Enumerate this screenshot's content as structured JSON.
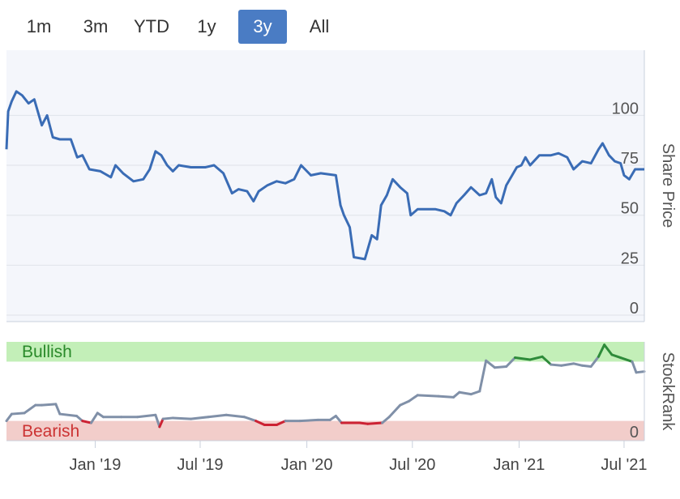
{
  "range_selector": {
    "tabs": [
      {
        "label": "1m",
        "active": false
      },
      {
        "label": "3m",
        "active": false
      },
      {
        "label": "YTD",
        "active": false
      },
      {
        "label": "1y",
        "active": false
      },
      {
        "label": "3y",
        "active": true
      },
      {
        "label": "All",
        "active": false
      }
    ],
    "active_color": "#4a7cc4"
  },
  "chart_data": [
    {
      "type": "line",
      "ylabel": "Share Price",
      "ylim": [
        0,
        118
      ],
      "y_ticks": [
        0,
        25,
        50,
        75,
        100
      ],
      "x_ticks": [
        "Jan '19",
        "Jul '19",
        "Jan '20",
        "Jul '20",
        "Jan '21",
        "Jul '21"
      ],
      "x_tick_dates": [
        "2019-01-01",
        "2019-07-01",
        "2020-01-01",
        "2020-07-01",
        "2021-01-01",
        "2021-07-01"
      ],
      "xlim": [
        "2018-08-01",
        "2021-08-05"
      ],
      "grid": true,
      "series": [
        {
          "color": "#3a6cb5",
          "points": [
            [
              "2018-08-01",
              83
            ],
            [
              "2018-08-04",
              102
            ],
            [
              "2018-08-10",
              107
            ],
            [
              "2018-08-18",
              112
            ],
            [
              "2018-08-28",
              110
            ],
            [
              "2018-09-08",
              106
            ],
            [
              "2018-09-18",
              108
            ],
            [
              "2018-10-01",
              95
            ],
            [
              "2018-10-10",
              100
            ],
            [
              "2018-10-20",
              89
            ],
            [
              "2018-11-01",
              88
            ],
            [
              "2018-11-20",
              88
            ],
            [
              "2018-12-01",
              79
            ],
            [
              "2018-12-10",
              80
            ],
            [
              "2018-12-22",
              73
            ],
            [
              "2019-01-10",
              72
            ],
            [
              "2019-01-28",
              69
            ],
            [
              "2019-02-05",
              75
            ],
            [
              "2019-02-18",
              71
            ],
            [
              "2019-03-08",
              67
            ],
            [
              "2019-03-25",
              68
            ],
            [
              "2019-04-05",
              73
            ],
            [
              "2019-04-15",
              82
            ],
            [
              "2019-04-25",
              80
            ],
            [
              "2019-05-05",
              75
            ],
            [
              "2019-05-15",
              72
            ],
            [
              "2019-05-25",
              75
            ],
            [
              "2019-06-15",
              74
            ],
            [
              "2019-07-10",
              74
            ],
            [
              "2019-07-25",
              75
            ],
            [
              "2019-08-10",
              71
            ],
            [
              "2019-08-25",
              61
            ],
            [
              "2019-09-05",
              63
            ],
            [
              "2019-09-20",
              62
            ],
            [
              "2019-10-01",
              57
            ],
            [
              "2019-10-10",
              62
            ],
            [
              "2019-10-25",
              65
            ],
            [
              "2019-11-10",
              67
            ],
            [
              "2019-11-25",
              66
            ],
            [
              "2019-12-10",
              68
            ],
            [
              "2019-12-22",
              75
            ],
            [
              "2020-01-08",
              70
            ],
            [
              "2020-01-25",
              71
            ],
            [
              "2020-02-20",
              70
            ],
            [
              "2020-02-28",
              55
            ],
            [
              "2020-03-05",
              50
            ],
            [
              "2020-03-15",
              44
            ],
            [
              "2020-03-22",
              29
            ],
            [
              "2020-04-10",
              28
            ],
            [
              "2020-04-22",
              40
            ],
            [
              "2020-05-01",
              38
            ],
            [
              "2020-05-08",
              55
            ],
            [
              "2020-05-18",
              60
            ],
            [
              "2020-05-28",
              68
            ],
            [
              "2020-06-10",
              64
            ],
            [
              "2020-06-22",
              61
            ],
            [
              "2020-06-28",
              50
            ],
            [
              "2020-07-10",
              53
            ],
            [
              "2020-08-10",
              53
            ],
            [
              "2020-08-25",
              52
            ],
            [
              "2020-09-05",
              50
            ],
            [
              "2020-09-15",
              56
            ],
            [
              "2020-09-28",
              60
            ],
            [
              "2020-10-10",
              64
            ],
            [
              "2020-10-25",
              60
            ],
            [
              "2020-11-05",
              61
            ],
            [
              "2020-11-15",
              68
            ],
            [
              "2020-11-22",
              59
            ],
            [
              "2020-12-01",
              56
            ],
            [
              "2020-12-10",
              65
            ],
            [
              "2020-12-20",
              70
            ],
            [
              "2020-12-28",
              74
            ],
            [
              "2021-01-05",
              75
            ],
            [
              "2021-01-12",
              79
            ],
            [
              "2021-01-20",
              75
            ],
            [
              "2021-02-05",
              80
            ],
            [
              "2021-02-25",
              80
            ],
            [
              "2021-03-10",
              81
            ],
            [
              "2021-03-25",
              79
            ],
            [
              "2021-04-05",
              73
            ],
            [
              "2021-04-20",
              77
            ],
            [
              "2021-05-05",
              76
            ],
            [
              "2021-05-18",
              83
            ],
            [
              "2021-05-25",
              86
            ],
            [
              "2021-06-05",
              80
            ],
            [
              "2021-06-15",
              77
            ],
            [
              "2021-06-25",
              76
            ],
            [
              "2021-07-01",
              70
            ],
            [
              "2021-07-10",
              68
            ],
            [
              "2021-07-20",
              73
            ],
            [
              "2021-08-05",
              73
            ]
          ]
        }
      ]
    },
    {
      "type": "line",
      "ylabel": "StockRank",
      "ylim": [
        0,
        100
      ],
      "y_ticks": [
        0
      ],
      "bands": [
        {
          "label": "Bullish",
          "from": 80,
          "to": 100,
          "color": "#c3efb8",
          "text_color": "#2a8a2a"
        },
        {
          "label": "Bearish",
          "from": 0,
          "to": 20,
          "color": "#f2cdca",
          "text_color": "#cc3333"
        }
      ],
      "line_colors": {
        "neutral": "#8090a8",
        "bullish": "#2e8b3a",
        "bearish": "#cc2233"
      },
      "series": [
        {
          "points": [
            [
              "2018-08-01",
              20
            ],
            [
              "2018-08-10",
              27
            ],
            [
              "2018-09-01",
              28
            ],
            [
              "2018-09-20",
              36
            ],
            [
              "2018-10-01",
              36
            ],
            [
              "2018-10-25",
              37
            ],
            [
              "2018-11-01",
              27
            ],
            [
              "2018-11-30",
              25
            ],
            [
              "2018-12-10",
              20
            ],
            [
              "2018-12-25",
              18
            ],
            [
              "2019-01-05",
              28
            ],
            [
              "2019-01-15",
              24
            ],
            [
              "2019-02-15",
              24
            ],
            [
              "2019-03-15",
              24
            ],
            [
              "2019-04-15",
              26
            ],
            [
              "2019-04-22",
              14
            ],
            [
              "2019-04-28",
              22
            ],
            [
              "2019-05-15",
              23
            ],
            [
              "2019-06-15",
              22
            ],
            [
              "2019-07-15",
              24
            ],
            [
              "2019-08-15",
              26
            ],
            [
              "2019-09-15",
              24
            ],
            [
              "2019-10-05",
              20
            ],
            [
              "2019-10-20",
              16
            ],
            [
              "2019-11-10",
              16
            ],
            [
              "2019-11-25",
              20
            ],
            [
              "2019-12-20",
              20
            ],
            [
              "2020-01-20",
              21
            ],
            [
              "2020-02-10",
              21
            ],
            [
              "2020-02-20",
              25
            ],
            [
              "2020-03-01",
              18
            ],
            [
              "2020-04-01",
              18
            ],
            [
              "2020-04-15",
              17
            ],
            [
              "2020-05-10",
              18
            ],
            [
              "2020-05-22",
              24
            ],
            [
              "2020-06-10",
              36
            ],
            [
              "2020-06-25",
              40
            ],
            [
              "2020-07-10",
              46
            ],
            [
              "2020-08-15",
              45
            ],
            [
              "2020-09-10",
              44
            ],
            [
              "2020-09-20",
              49
            ],
            [
              "2020-10-10",
              47
            ],
            [
              "2020-10-25",
              50
            ],
            [
              "2020-11-05",
              81
            ],
            [
              "2020-11-20",
              74
            ],
            [
              "2020-12-10",
              75
            ],
            [
              "2020-12-25",
              84
            ],
            [
              "2021-01-20",
              82
            ],
            [
              "2021-02-10",
              85
            ],
            [
              "2021-02-25",
              77
            ],
            [
              "2021-03-15",
              76
            ],
            [
              "2021-04-05",
              78
            ],
            [
              "2021-04-20",
              76
            ],
            [
              "2021-05-05",
              75
            ],
            [
              "2021-05-18",
              85
            ],
            [
              "2021-05-28",
              97
            ],
            [
              "2021-06-10",
              87
            ],
            [
              "2021-06-25",
              84
            ],
            [
              "2021-07-15",
              80
            ],
            [
              "2021-07-22",
              69
            ],
            [
              "2021-08-05",
              70
            ]
          ]
        }
      ]
    }
  ]
}
